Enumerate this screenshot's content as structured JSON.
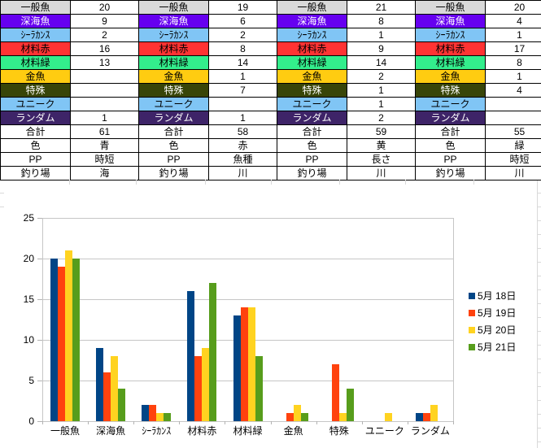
{
  "table": {
    "rows": [
      {
        "label": "一般魚",
        "bg": "#d9d9d9",
        "fg": "#000000",
        "values": [
          "20",
          "19",
          "21",
          "20"
        ]
      },
      {
        "label": "深海魚",
        "bg": "#6600f0",
        "fg": "#ffffff",
        "values": [
          "9",
          "6",
          "8",
          "4"
        ]
      },
      {
        "label": "ｼｰﾗｶﾝｽ",
        "bg": "#80c5f5",
        "fg": "#000000",
        "values": [
          "2",
          "2",
          "1",
          "1"
        ]
      },
      {
        "label": "材料赤",
        "bg": "#ff3333",
        "fg": "#000000",
        "values": [
          "16",
          "8",
          "9",
          "17"
        ]
      },
      {
        "label": "材料緑",
        "bg": "#33ee8c",
        "fg": "#000000",
        "values": [
          "13",
          "14",
          "14",
          "8"
        ]
      },
      {
        "label": "金魚",
        "bg": "#ffcc11",
        "fg": "#000000",
        "values": [
          "",
          "1",
          "2",
          "1"
        ]
      },
      {
        "label": "特殊",
        "bg": "#384508",
        "fg": "#ffffff",
        "values": [
          "",
          "7",
          "1",
          "4"
        ]
      },
      {
        "label": "ユニーク",
        "bg": "#80c5f5",
        "fg": "#000000",
        "values": [
          "",
          "",
          "1",
          ""
        ]
      },
      {
        "label": "ランダム",
        "bg": "#3e2468",
        "fg": "#ffffff",
        "values": [
          "1",
          "1",
          "2",
          ""
        ]
      },
      {
        "label": "合計",
        "bg": "#ffffff",
        "fg": "#000000",
        "values": [
          "61",
          "58",
          "59",
          "55"
        ]
      },
      {
        "label": "色",
        "bg": "#ffffff",
        "fg": "#000000",
        "values": [
          "青",
          "赤",
          "黄",
          "緑"
        ]
      },
      {
        "label": "PP",
        "bg": "#ffffff",
        "fg": "#000000",
        "values": [
          "時短",
          "魚種",
          "長さ",
          "時短"
        ]
      },
      {
        "label": "釣り場",
        "bg": "#ffffff",
        "fg": "#000000",
        "values": [
          "海",
          "川",
          "川",
          "川"
        ]
      }
    ]
  },
  "chart_data": {
    "type": "bar",
    "title": "",
    "categories": [
      "一般魚",
      "深海魚",
      "ｼｰﾗｶﾝｽ",
      "材料赤",
      "材料緑",
      "金魚",
      "特殊",
      "ユニーク",
      "ランダム"
    ],
    "series": [
      {
        "name": "5月 18日",
        "color": "#004586",
        "values": [
          20,
          9,
          2,
          16,
          13,
          0,
          0,
          0,
          1
        ]
      },
      {
        "name": "5月 19日",
        "color": "#ff420e",
        "values": [
          19,
          6,
          2,
          8,
          14,
          1,
          7,
          0,
          1
        ]
      },
      {
        "name": "5月 20日",
        "color": "#ffd320",
        "values": [
          21,
          8,
          1,
          9,
          14,
          2,
          1,
          1,
          2
        ]
      },
      {
        "name": "5月 21日",
        "color": "#579d1c",
        "values": [
          20,
          4,
          1,
          17,
          8,
          1,
          4,
          0,
          0
        ]
      }
    ],
    "xlabel": "",
    "ylabel": "",
    "ylim": [
      0,
      25
    ],
    "ytick_interval": 5,
    "yticks": [
      "0",
      "5",
      "10",
      "15",
      "20",
      "25"
    ],
    "grid": true,
    "legend_position": "right"
  }
}
